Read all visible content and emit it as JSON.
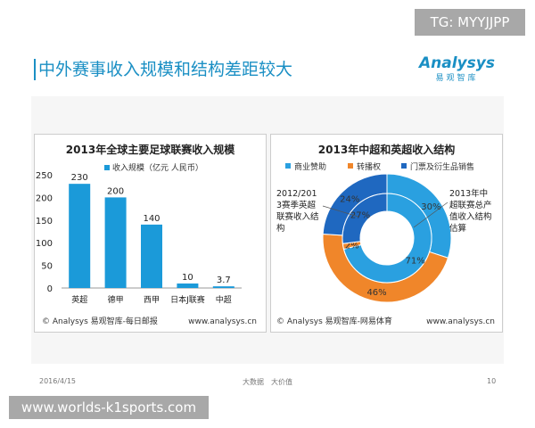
{
  "watermark_tg": "TG: MYYJJPP",
  "page_title": "中外赛事收入规模和结构差距较大",
  "logo": {
    "name": "Analysys",
    "sub": "易观智库"
  },
  "footer": {
    "date": "2016/4/15",
    "slogan": "大数据　大价值",
    "page": "10"
  },
  "site_watermark": "www.worlds-k1sports.com",
  "chart_data": [
    {
      "type": "bar",
      "title": "2013年全球主要足球联赛收入规模",
      "legend": "收入规模（亿元 人民币）",
      "categories": [
        "英超",
        "德甲",
        "西甲",
        "日本J联赛",
        "中超"
      ],
      "values": [
        230,
        200,
        140,
        10,
        3.7
      ],
      "value_labels": [
        "230",
        "200",
        "140",
        "10",
        "3.7"
      ],
      "yticks": [
        "0",
        "50",
        "100",
        "150",
        "200",
        "250"
      ],
      "ylim": [
        0,
        250
      ],
      "color": "#1b9ad9",
      "source": "© Analysys 易观智库-每日邮报",
      "url": "www.analysys.cn"
    },
    {
      "type": "pie",
      "title": "2013年中超和英超收入结构",
      "legend": [
        "商业赞助",
        "转播权",
        "门票及衍生品销售"
      ],
      "colors": [
        "#2aa0e0",
        "#f0862a",
        "#1f68c0"
      ],
      "outer": {
        "label": "2012/2013赛季英超联赛收入结构",
        "values": [
          30,
          46,
          24
        ],
        "labels": [
          "30%",
          "46%",
          "24%"
        ]
      },
      "inner": {
        "label": "2013年中超联赛总产值收入结构估算",
        "values": [
          71,
          2,
          27
        ],
        "labels": [
          "71%",
          "2%",
          "27%"
        ]
      },
      "source": "© Analysys 易观智库-网易体育",
      "url": "www.analysys.cn"
    }
  ]
}
